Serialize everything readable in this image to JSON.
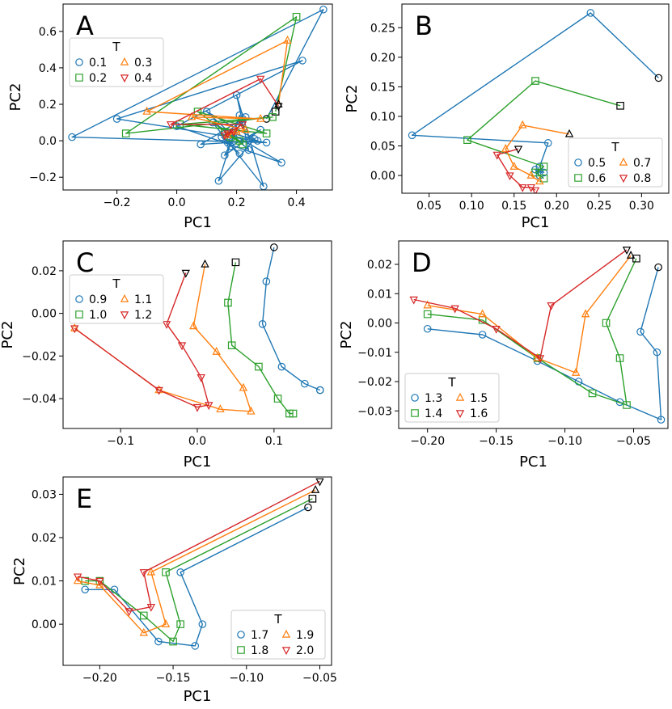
{
  "chart_data": [
    {
      "type": "line",
      "panel": "A",
      "xlabel": "PC1",
      "ylabel": "PC2",
      "xlim": [
        -0.38,
        0.52
      ],
      "ylim": [
        -0.27,
        0.75
      ],
      "xticks": [
        -0.2,
        0.0,
        0.2,
        0.4
      ],
      "yticks": [
        -0.2,
        0.0,
        0.2,
        0.4,
        0.6
      ],
      "xtick_labels": [
        "−0.2",
        "0.0",
        "0.2",
        "0.4"
      ],
      "ytick_labels": [
        "−0.2",
        "0.0",
        "0.2",
        "0.4",
        "0.6"
      ],
      "legend": {
        "title": "T",
        "placement": "upper-left"
      },
      "series": [
        {
          "name": "0.1",
          "color": "#1f77b4",
          "marker": "circle",
          "x": [
            0.3,
            0.49,
            -0.35,
            0.3,
            -0.2,
            0.42,
            0.0,
            0.35,
            0.12,
            0.29,
            0.2,
            0.24,
            0.1,
            0.26,
            0.14,
            0.21,
            0.18,
            0.28,
            0.16,
            0.22,
            0.08,
            0.27,
            0.19,
            0.17,
            0.23,
            0.15,
            0.21
          ],
          "y": [
            0.12,
            0.72,
            0.02,
            -0.01,
            0.12,
            0.44,
            0.08,
            -0.12,
            0.1,
            -0.25,
            0.25,
            -0.05,
            0.16,
            0.01,
            -0.22,
            0.14,
            -0.03,
            0.06,
            -0.08,
            0.12,
            -0.02,
            0.0,
            0.04,
            -0.01,
            0.13,
            0.02,
            -0.07
          ]
        },
        {
          "name": "0.2",
          "color": "#2ca02c",
          "marker": "square",
          "x": [
            0.33,
            0.4,
            -0.17,
            0.32,
            0.01,
            0.3,
            0.07,
            0.22,
            0.16,
            0.21,
            0.18
          ],
          "y": [
            0.16,
            0.68,
            0.04,
            0.13,
            0.09,
            0.04,
            0.16,
            -0.02,
            0.05,
            0.0,
            0.02
          ]
        },
        {
          "name": "0.3",
          "color": "#ff7f0e",
          "marker": "triangle-up",
          "x": [
            0.34,
            0.37,
            -0.1,
            0.28,
            0.05,
            0.23,
            0.17,
            0.2
          ],
          "y": [
            0.2,
            0.55,
            0.16,
            0.12,
            0.13,
            0.06,
            0.03,
            0.05
          ]
        },
        {
          "name": "0.4",
          "color": "#d62728",
          "marker": "triangle-down",
          "x": [
            0.34,
            0.28,
            -0.02,
            0.22,
            0.16,
            0.19,
            0.17
          ],
          "y": [
            0.19,
            0.34,
            0.09,
            0.09,
            0.03,
            0.05,
            0.04
          ]
        }
      ]
    },
    {
      "type": "line",
      "panel": "B",
      "xlabel": "PC1",
      "ylabel": "PC2",
      "xlim": [
        0.018,
        0.332
      ],
      "ylim": [
        -0.03,
        0.29
      ],
      "xticks": [
        0.05,
        0.1,
        0.15,
        0.2,
        0.25,
        0.3
      ],
      "yticks": [
        0.0,
        0.05,
        0.1,
        0.15,
        0.2,
        0.25
      ],
      "xtick_labels": [
        "0.05",
        "0.10",
        "0.15",
        "0.20",
        "0.25",
        "0.30"
      ],
      "ytick_labels": [
        "0.00",
        "0.05",
        "0.10",
        "0.15",
        "0.20",
        "0.25"
      ],
      "legend": {
        "title": "T",
        "placement": "lower-right"
      },
      "series": [
        {
          "name": "0.5",
          "color": "#1f77b4",
          "marker": "circle",
          "x": [
            0.32,
            0.24,
            0.03,
            0.19,
            0.18,
            0.185,
            0.175,
            0.18
          ],
          "y": [
            0.165,
            0.275,
            0.068,
            0.055,
            0.015,
            0.005,
            0.01,
            0.0
          ]
        },
        {
          "name": "0.6",
          "color": "#2ca02c",
          "marker": "square",
          "x": [
            0.275,
            0.175,
            0.095,
            0.185,
            0.175,
            0.185
          ],
          "y": [
            0.118,
            0.16,
            0.06,
            0.015,
            0.005,
            -0.005
          ]
        },
        {
          "name": "0.7",
          "color": "#ff7f0e",
          "marker": "triangle-up",
          "x": [
            0.215,
            0.16,
            0.14,
            0.15,
            0.17,
            0.18
          ],
          "y": [
            0.07,
            0.085,
            0.045,
            0.015,
            0.0,
            -0.01
          ]
        },
        {
          "name": "0.8",
          "color": "#d62728",
          "marker": "triangle-down",
          "x": [
            0.155,
            0.13,
            0.145,
            0.16,
            0.17,
            0.175
          ],
          "y": [
            0.045,
            0.035,
            0.0,
            -0.02,
            -0.02,
            -0.025
          ]
        }
      ]
    },
    {
      "type": "line",
      "panel": "C",
      "xlabel": "PC1",
      "ylabel": "PC2",
      "xlim": [
        -0.175,
        0.175
      ],
      "ylim": [
        -0.054,
        0.034
      ],
      "xticks": [
        -0.1,
        0.0,
        0.1
      ],
      "yticks": [
        -0.04,
        -0.02,
        0.0,
        0.02
      ],
      "xtick_labels": [
        "−0.1",
        "0.0",
        "0.1"
      ],
      "ytick_labels": [
        "−0.04",
        "−0.02",
        "0.00",
        "0.02"
      ],
      "legend": {
        "title": "T",
        "placement": "upper-left"
      },
      "series": [
        {
          "name": "0.9",
          "color": "#1f77b4",
          "marker": "circle",
          "x": [
            0.1,
            0.09,
            0.085,
            0.11,
            0.14,
            0.16,
            0.16
          ],
          "y": [
            0.031,
            0.015,
            -0.005,
            -0.025,
            -0.033,
            -0.036,
            -0.036
          ]
        },
        {
          "name": "1.0",
          "color": "#2ca02c",
          "marker": "square",
          "x": [
            0.05,
            0.04,
            0.045,
            0.08,
            0.105,
            0.12,
            0.125
          ],
          "y": [
            0.024,
            0.005,
            -0.015,
            -0.025,
            -0.04,
            -0.047,
            -0.047
          ]
        },
        {
          "name": "1.1",
          "color": "#ff7f0e",
          "marker": "triangle-up",
          "x": [
            0.01,
            -0.005,
            0.025,
            0.06,
            0.07,
            0.03,
            -0.05,
            -0.16
          ],
          "y": [
            0.023,
            -0.006,
            -0.018,
            -0.035,
            -0.046,
            -0.045,
            -0.036,
            -0.007
          ]
        },
        {
          "name": "1.2",
          "color": "#d62728",
          "marker": "triangle-down",
          "x": [
            -0.015,
            -0.04,
            -0.02,
            0.005,
            0.015,
            0.0,
            -0.05,
            -0.16
          ],
          "y": [
            0.019,
            -0.005,
            -0.015,
            -0.03,
            -0.043,
            -0.044,
            -0.036,
            -0.007
          ]
        }
      ]
    },
    {
      "type": "line",
      "panel": "D",
      "xlabel": "PC1",
      "ylabel": "PC2",
      "xlim": [
        -0.221,
        -0.025
      ],
      "ylim": [
        -0.036,
        0.028
      ],
      "xticks": [
        -0.2,
        -0.15,
        -0.1,
        -0.05
      ],
      "yticks": [
        -0.03,
        -0.02,
        -0.01,
        0.0,
        0.01,
        0.02
      ],
      "xtick_labels": [
        "−0.20",
        "−0.15",
        "−0.10",
        "−0.05"
      ],
      "ytick_labels": [
        "−0.03",
        "−0.02",
        "−0.01",
        "0.00",
        "0.01",
        "0.02"
      ],
      "legend": {
        "title": "T",
        "placement": "lower-left"
      },
      "series": [
        {
          "name": "1.3",
          "color": "#1f77b4",
          "marker": "circle",
          "x": [
            -0.032,
            -0.045,
            -0.033,
            -0.03,
            -0.06,
            -0.09,
            -0.12,
            -0.16,
            -0.2
          ],
          "y": [
            0.019,
            -0.003,
            -0.01,
            -0.033,
            -0.027,
            -0.02,
            -0.013,
            -0.004,
            -0.002
          ]
        },
        {
          "name": "1.4",
          "color": "#2ca02c",
          "marker": "square",
          "x": [
            -0.048,
            -0.07,
            -0.06,
            -0.055,
            -0.08,
            -0.12,
            -0.16,
            -0.2
          ],
          "y": [
            0.022,
            0.0,
            -0.012,
            -0.028,
            -0.024,
            -0.012,
            0.001,
            0.003
          ]
        },
        {
          "name": "1.5",
          "color": "#ff7f0e",
          "marker": "triangle-up",
          "x": [
            -0.052,
            -0.085,
            -0.092,
            -0.12,
            -0.16,
            -0.2
          ],
          "y": [
            0.023,
            0.003,
            -0.017,
            -0.012,
            0.003,
            0.006
          ]
        },
        {
          "name": "1.6",
          "color": "#d62728",
          "marker": "triangle-down",
          "x": [
            -0.055,
            -0.11,
            -0.118,
            -0.15,
            -0.18,
            -0.21
          ],
          "y": [
            0.025,
            0.006,
            -0.012,
            -0.002,
            0.005,
            0.008
          ]
        }
      ]
    },
    {
      "type": "line",
      "panel": "E",
      "xlabel": "PC1",
      "ylabel": "PC2",
      "xlim": [
        -0.225,
        -0.042
      ],
      "ylim": [
        -0.0095,
        0.034
      ],
      "xticks": [
        -0.2,
        -0.15,
        -0.1,
        -0.05
      ],
      "yticks": [
        0.0,
        0.01,
        0.02,
        0.03
      ],
      "xtick_labels": [
        "−0.20",
        "−0.15",
        "−0.10",
        "−0.05"
      ],
      "ytick_labels": [
        "0.00",
        "0.01",
        "0.02",
        "0.03"
      ],
      "legend": {
        "title": "T",
        "placement": "lower-right"
      },
      "series": [
        {
          "name": "1.7",
          "color": "#1f77b4",
          "marker": "circle",
          "x": [
            -0.058,
            -0.145,
            -0.13,
            -0.135,
            -0.16,
            -0.19,
            -0.21
          ],
          "y": [
            0.027,
            0.012,
            0.0,
            -0.005,
            -0.004,
            0.008,
            0.008
          ]
        },
        {
          "name": "1.8",
          "color": "#2ca02c",
          "marker": "square",
          "x": [
            -0.055,
            -0.155,
            -0.145,
            -0.15,
            -0.17,
            -0.2,
            -0.21
          ],
          "y": [
            0.029,
            0.012,
            0.0,
            -0.004,
            0.002,
            0.01,
            0.01
          ]
        },
        {
          "name": "1.9",
          "color": "#ff7f0e",
          "marker": "triangle-up",
          "x": [
            -0.053,
            -0.165,
            -0.155,
            -0.17,
            -0.2,
            -0.215
          ],
          "y": [
            0.031,
            0.012,
            0.0,
            -0.002,
            0.009,
            0.01
          ]
        },
        {
          "name": "2.0",
          "color": "#d62728",
          "marker": "triangle-down",
          "x": [
            -0.05,
            -0.17,
            -0.165,
            -0.18,
            -0.2,
            -0.215
          ],
          "y": [
            0.033,
            0.012,
            0.004,
            0.003,
            0.01,
            0.011
          ]
        }
      ]
    }
  ]
}
